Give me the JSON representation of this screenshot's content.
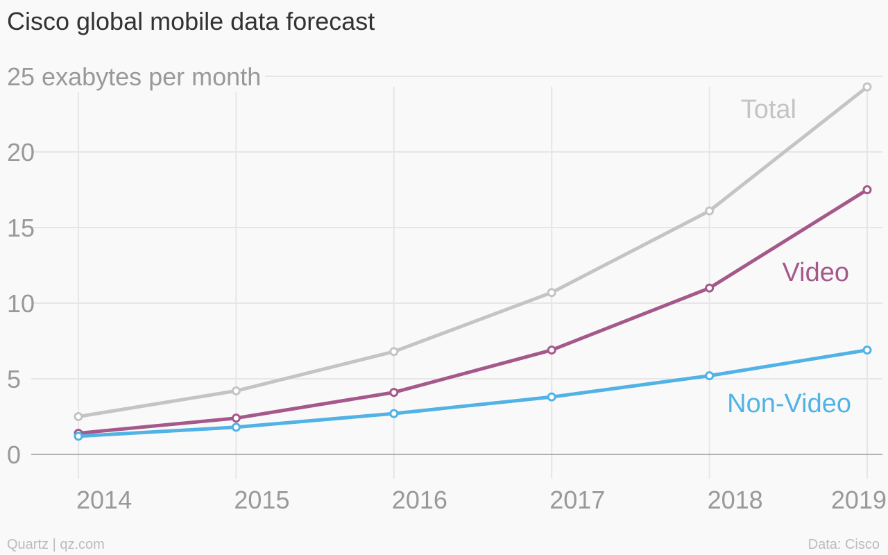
{
  "title": "Cisco global mobile data forecast",
  "footer": {
    "source_left": "Quartz | qz.com",
    "source_right": "Data: Cisco"
  },
  "colors": {
    "Total": "#c4c4c4",
    "Video": "#a5588a",
    "Non-Video": "#51b2e5",
    "grid": "#e6e6e6",
    "axis": "#999999"
  },
  "chart_data": {
    "type": "line",
    "title": "Cisco global mobile data forecast",
    "ylabel": "exabytes per month",
    "top_tick_label": "25 exabytes per month",
    "x": [
      2014,
      2015,
      2016,
      2017,
      2018,
      2019
    ],
    "x_tick_labels": [
      "2014",
      "2015",
      "2016",
      "2017",
      "2018",
      "2019"
    ],
    "y_ticks": [
      0,
      5,
      10,
      15,
      20,
      25
    ],
    "y_tick_labels": [
      "0",
      "5",
      "10",
      "15",
      "20",
      "25 exabytes per month"
    ],
    "ylim": [
      0,
      25
    ],
    "grid": true,
    "series": [
      {
        "name": "Total",
        "values": [
          2.5,
          4.2,
          6.8,
          10.7,
          16.1,
          24.3
        ]
      },
      {
        "name": "Video",
        "values": [
          1.4,
          2.4,
          4.1,
          6.9,
          11.0,
          17.5
        ]
      },
      {
        "name": "Non-Video",
        "values": [
          1.2,
          1.8,
          2.7,
          3.8,
          5.2,
          6.9
        ]
      }
    ],
    "legend": "inline labels near line ends"
  }
}
